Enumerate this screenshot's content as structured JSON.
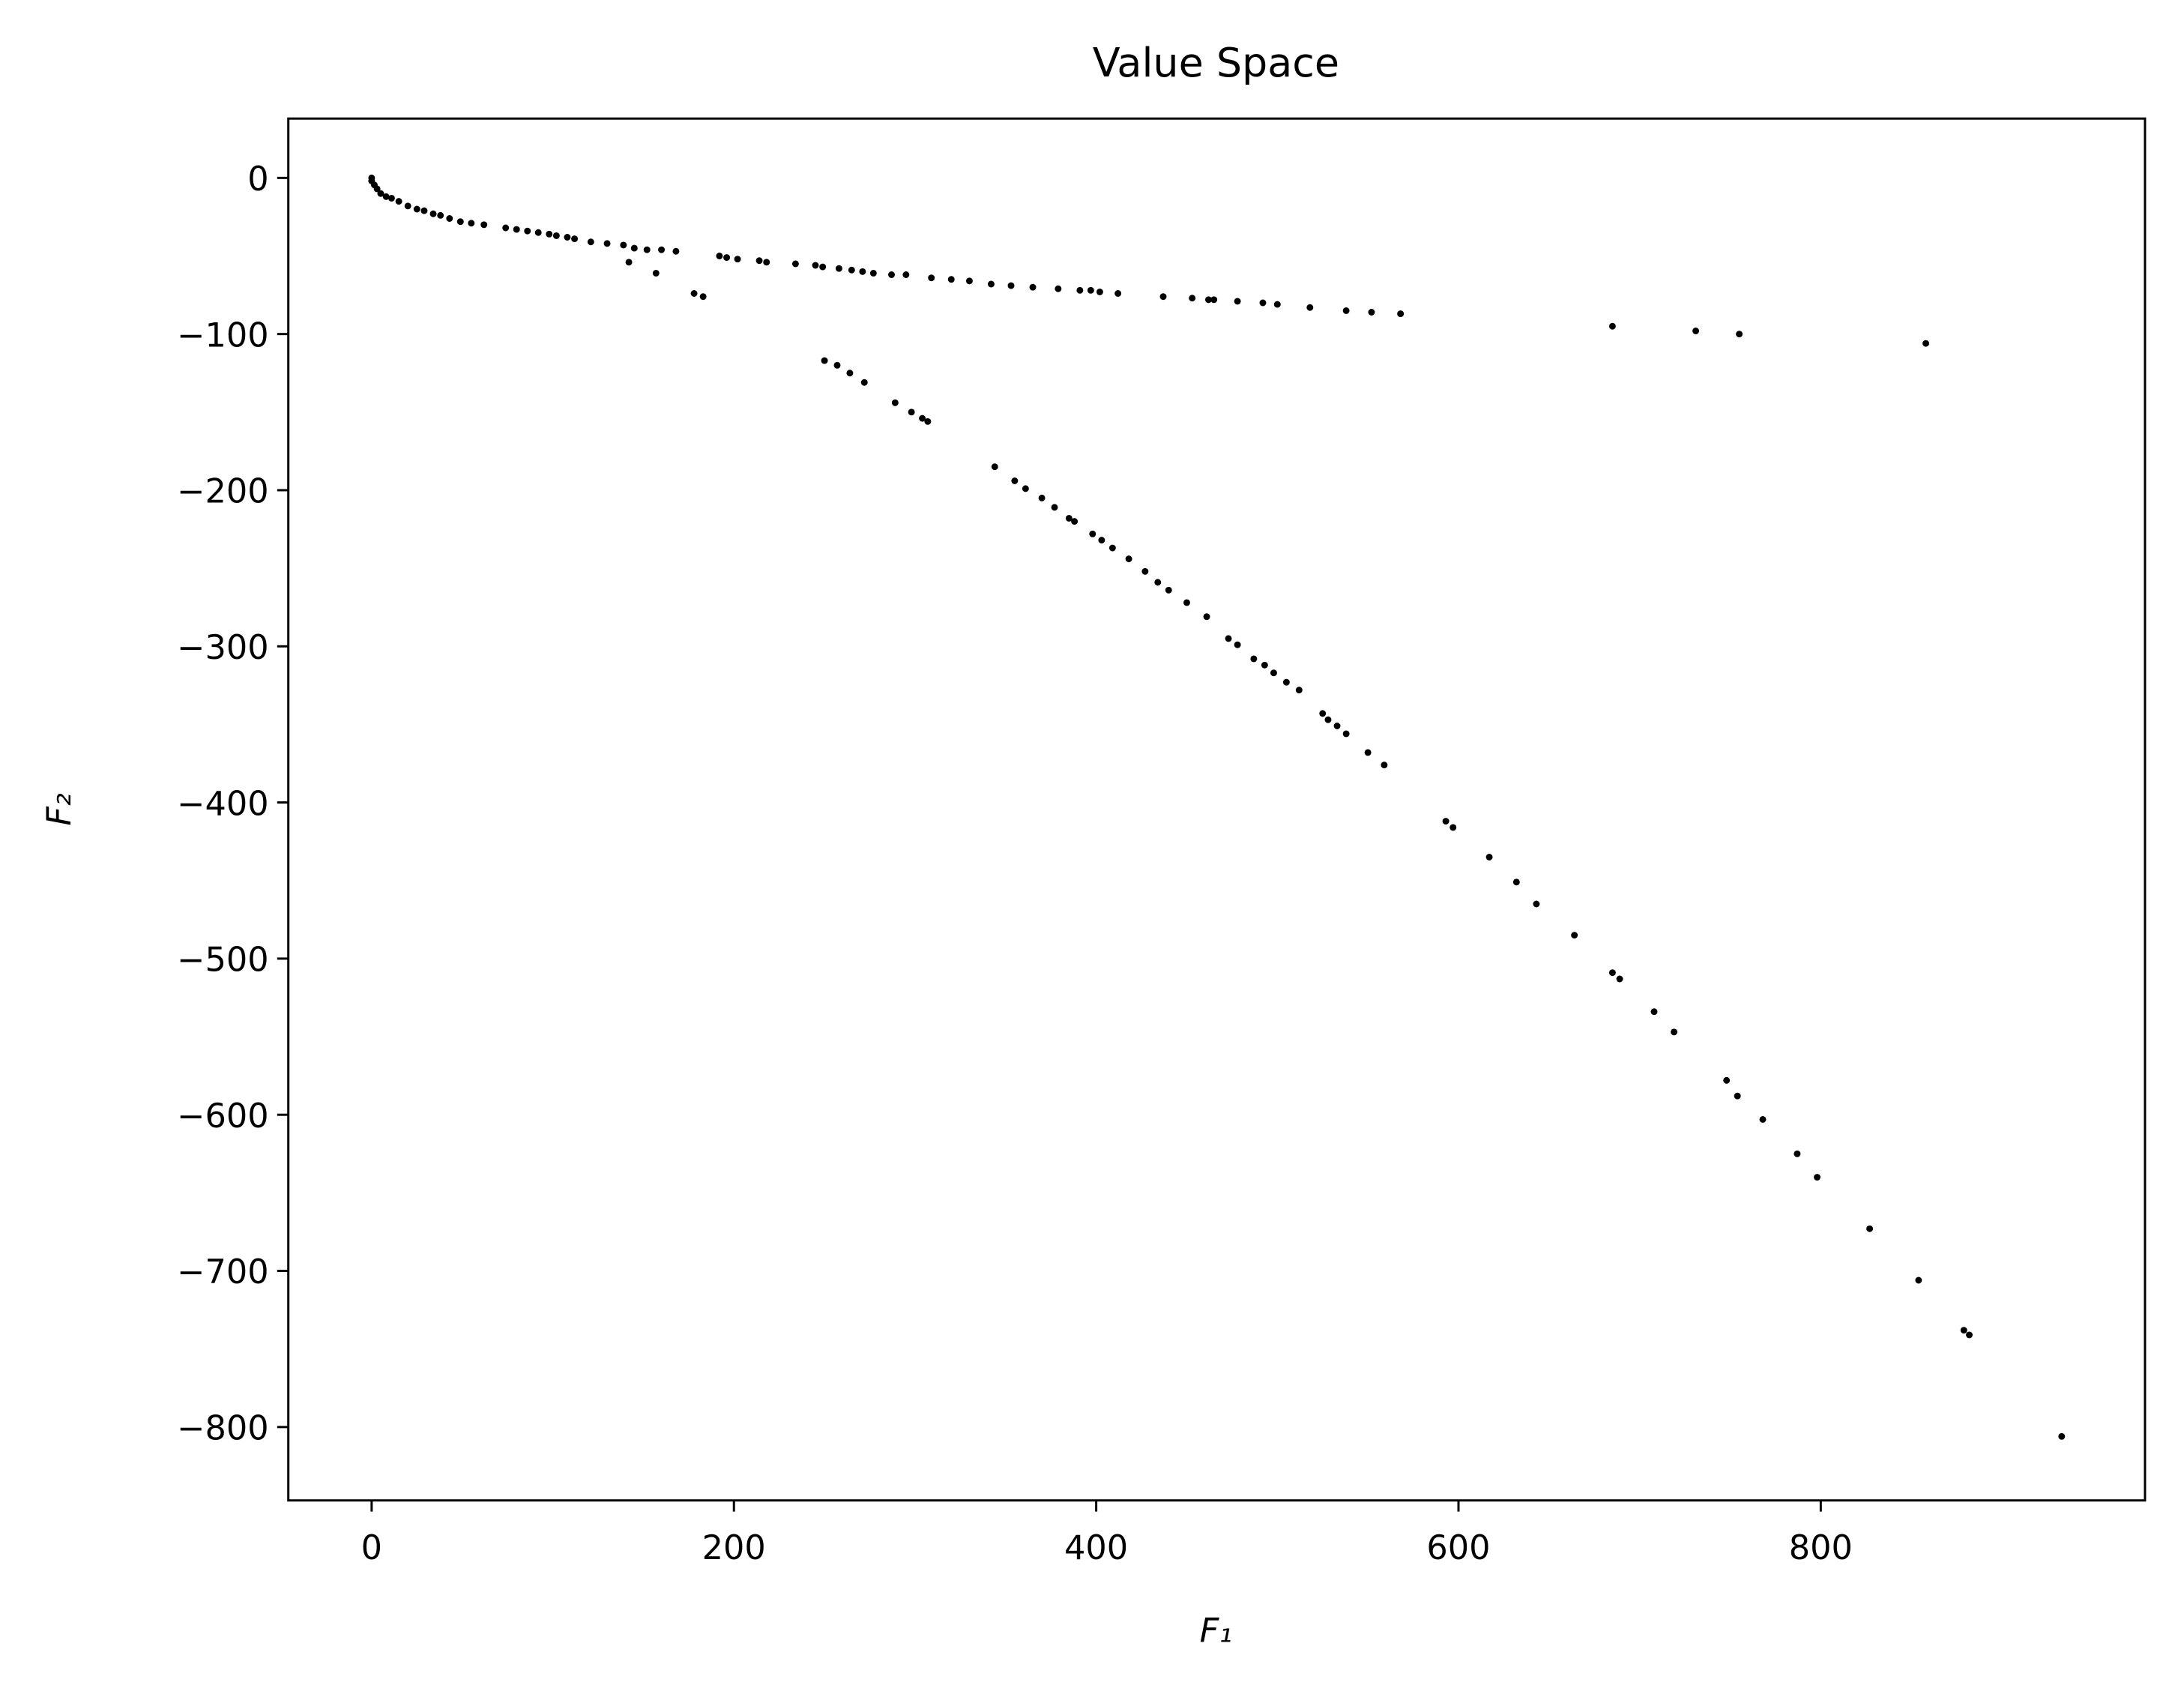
{
  "chart_data": {
    "type": "scatter",
    "title": "Value Space",
    "xlabel": "F₁",
    "ylabel": "F₂",
    "xlim": [
      -46,
      979
    ],
    "ylim": [
      -847,
      38
    ],
    "xticks": [
      0,
      200,
      400,
      600,
      800
    ],
    "yticks": [
      0,
      {
        "value": -100,
        "label": "−100"
      },
      {
        "value": -200,
        "label": "−200"
      },
      {
        "value": -300,
        "label": "−300"
      },
      {
        "value": -400,
        "label": "−400"
      },
      {
        "value": -500,
        "label": "−500"
      },
      {
        "value": -600,
        "label": "−600"
      },
      {
        "value": -700,
        "label": "−700"
      },
      {
        "value": -800,
        "label": "−800"
      }
    ],
    "grid": false,
    "series": [
      {
        "color": "#000000",
        "x": [
          0,
          0,
          1.5,
          3,
          5,
          8,
          11,
          15,
          20,
          25,
          29,
          34,
          38,
          43,
          49,
          55,
          62,
          74,
          80,
          86,
          92,
          98,
          102,
          108,
          112,
          121,
          130,
          139,
          145,
          152,
          160,
          168,
          192,
          196,
          202,
          214,
          218,
          234,
          245,
          249,
          258,
          265,
          271,
          277,
          287,
          295,
          309,
          320,
          330,
          342,
          353,
          365,
          379,
          391,
          397,
          402,
          412,
          437,
          453,
          462,
          465,
          478,
          492,
          500,
          518,
          538,
          552,
          568,
          685,
          731,
          755,
          858,
          142,
          157,
          178,
          183,
          250,
          257,
          264,
          272,
          289,
          298,
          304,
          307,
          344,
          355,
          361,
          370,
          377,
          385,
          388,
          398,
          403,
          409,
          418,
          427,
          434,
          440,
          450,
          461,
          473,
          478,
          487,
          493,
          498,
          505,
          512,
          525,
          528,
          533,
          538,
          550,
          559,
          593,
          597,
          617,
          632,
          643,
          664,
          685,
          689,
          708,
          719,
          748,
          754,
          768,
          787,
          798,
          827,
          854,
          879,
          882,
          933
        ],
        "y": [
          0,
          -2,
          -4.5,
          -7,
          -10,
          -12,
          -13,
          -15,
          -18,
          -20,
          -21,
          -23,
          -24,
          -26,
          -28,
          -29,
          -30,
          -32,
          -33,
          -34,
          -35,
          -36,
          -37,
          -38,
          -39,
          -41,
          -42,
          -43,
          -45,
          -46,
          -46,
          -47,
          -50,
          -51,
          -52,
          -53,
          -54,
          -55,
          -56,
          -57,
          -58,
          -59,
          -60,
          -61,
          -62,
          -62,
          -64,
          -65,
          -66,
          -68,
          -69,
          -70,
          -71,
          -72,
          -72,
          -73,
          -74,
          -76,
          -77,
          -78,
          -78,
          -79,
          -80,
          -81,
          -83,
          -85,
          -86,
          -87,
          -95,
          -98,
          -100,
          -106,
          -54,
          -61,
          -74,
          -76,
          -117,
          -120,
          -125,
          -131,
          -144,
          -150,
          -154,
          -156,
          -185,
          -194,
          -199,
          -205,
          -211,
          -218,
          -220,
          -228,
          -232,
          -237,
          -244,
          -252,
          -259,
          -264,
          -272,
          -281,
          -295,
          -299,
          -308,
          -312,
          -317,
          -323,
          -328,
          -343,
          -347,
          -351,
          -356,
          -368,
          -376,
          -412,
          -416,
          -435,
          -451,
          -465,
          -485,
          -509,
          -513,
          -534,
          -547,
          -578,
          -588,
          -603,
          -625,
          -640,
          -673,
          -706,
          -738,
          -741,
          -806
        ]
      }
    ]
  }
}
